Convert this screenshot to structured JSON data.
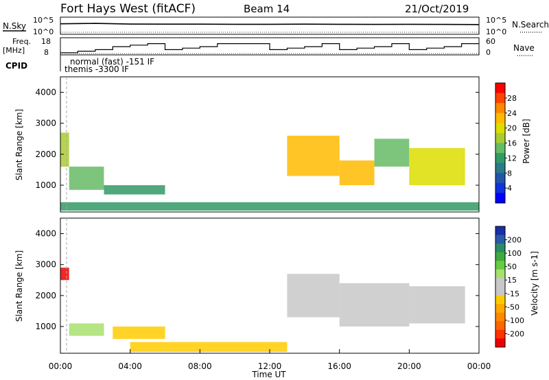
{
  "header": {
    "radar": "Fort Hays West (fitACF)",
    "beam": "Beam 14",
    "date": "21/Oct/2019"
  },
  "noise_panel": {
    "left_label": "N.Sky",
    "right_label": "N.Search",
    "left_ticks": [
      "10^5",
      "10^0"
    ],
    "right_ticks": [
      "10^5",
      "10^0"
    ]
  },
  "freq_panel": {
    "left_label_line1": "Freq.",
    "left_label_line2": "[MHz]",
    "right_label": "Nave",
    "left_ticks": [
      "18",
      "8"
    ],
    "right_ticks": [
      "60",
      "0"
    ]
  },
  "cpid": {
    "label": "CPID",
    "line1": "normal (fast) -151 IF",
    "line2": "themis -3300 IF"
  },
  "time_axis": {
    "label": "Time UT",
    "ticks": [
      "00:00",
      "04:00",
      "08:00",
      "12:00",
      "16:00",
      "20:00",
      "00:00"
    ]
  },
  "power_panel": {
    "ylabel": "Slant Range [km]",
    "yticks": [
      "4000",
      "3000",
      "2000",
      "1000"
    ],
    "colorbar_label": "Power [dB]",
    "colorbar_ticks": [
      "28",
      "24",
      "20",
      "16",
      "12",
      "8",
      "4"
    ],
    "colorbar_colors": [
      "#ff0000",
      "#ff4400",
      "#ff8800",
      "#ffbb00",
      "#dddd00",
      "#aacc33",
      "#66bb66",
      "#339966",
      "#2a7a88",
      "#2255aa",
      "#1133dd",
      "#0000ff"
    ]
  },
  "velocity_panel": {
    "ylabel": "Slant Range [km]",
    "yticks": [
      "4000",
      "3000",
      "2000",
      "1000"
    ],
    "colorbar_label": "Velocity [m s-1]",
    "colorbar_ticks": [
      "200",
      "100",
      "50",
      "15",
      "-15",
      "-50",
      "-100",
      "-200"
    ],
    "colorbar_colors": [
      "#1a2ea8",
      "#2a5aa8",
      "#2f8a66",
      "#3faa3f",
      "#66cc44",
      "#a8e070",
      "#c8c8c8",
      "#c8c8c8",
      "#ffcc00",
      "#ffaa00",
      "#ff8800",
      "#ff6600",
      "#ff3300",
      "#ee0000"
    ]
  },
  "chart_data": [
    {
      "type": "line",
      "title": "Fort Hays West (fitACF)",
      "ylabel": "N.Sky",
      "x": [
        "00:00",
        "02:00",
        "04:00",
        "06:00",
        "08:00",
        "10:00",
        "12:00",
        "14:00",
        "16:00",
        "18:00",
        "20:00",
        "22:00",
        "24:00"
      ],
      "series": [
        {
          "values": [
            1500,
            2000,
            1200,
            1100,
            1100,
            1000,
            1000,
            1100,
            1000,
            900,
            1000,
            900,
            800
          ]
        }
      ]
    },
    {
      "type": "line",
      "ylabel": "Freq. [MHz]",
      "ylim": [
        8,
        18
      ],
      "x": [
        "00:00",
        "01:00",
        "02:00",
        "03:00",
        "04:00",
        "05:00",
        "06:00",
        "07:00",
        "08:00",
        "09:00",
        "10:00",
        "11:00",
        "12:00",
        "13:00",
        "14:00",
        "15:00",
        "16:00",
        "17:00",
        "18:00",
        "19:00",
        "20:00",
        "21:00",
        "22:00",
        "23:00"
      ],
      "series": [
        {
          "values": [
            9,
            10,
            11,
            13,
            14,
            15,
            11,
            12,
            13,
            15,
            15,
            15,
            11,
            12,
            13,
            15,
            11,
            12,
            13,
            15,
            11,
            12,
            13,
            15
          ]
        }
      ]
    },
    {
      "type": "heatmap",
      "title": "Beam 14",
      "ylabel": "Slant Range [km]",
      "xlabel": "Time UT",
      "colorbar": "Power [dB]",
      "clim": [
        0,
        30
      ],
      "xlim": [
        "00:00",
        "24:00"
      ],
      "ylim": [
        180,
        4500
      ],
      "regions": [
        {
          "t0": 0.0,
          "t1": 0.5,
          "r0": 1600,
          "r1": 2700,
          "value": 16
        },
        {
          "t0": 0.5,
          "t1": 2.5,
          "r0": 850,
          "r1": 1600,
          "value": 14
        },
        {
          "t0": 2.5,
          "t1": 6.0,
          "r0": 700,
          "r1": 1000,
          "value": 12
        },
        {
          "t0": 13.0,
          "t1": 16.0,
          "r0": 1300,
          "r1": 2600,
          "value": 22
        },
        {
          "t0": 16.0,
          "t1": 18.0,
          "r0": 1000,
          "r1": 1800,
          "value": 20
        },
        {
          "t0": 18.0,
          "t1": 20.0,
          "r0": 1600,
          "r1": 2500,
          "value": 14
        },
        {
          "t0": 20.0,
          "t1": 23.2,
          "r0": 1000,
          "r1": 2200,
          "value": 18
        },
        {
          "t0": 0.0,
          "t1": 24.0,
          "r0": 180,
          "r1": 450,
          "value": 10
        }
      ]
    },
    {
      "type": "heatmap",
      "ylabel": "Slant Range [km]",
      "xlabel": "Time UT",
      "colorbar": "Velocity [m s-1]",
      "clim": [
        -200,
        200
      ],
      "xlim": [
        "00:00",
        "24:00"
      ],
      "ylim": [
        180,
        4500
      ],
      "regions": [
        {
          "t0": 0.0,
          "t1": 0.5,
          "r0": 2500,
          "r1": 2900,
          "value": -200
        },
        {
          "t0": 0.5,
          "t1": 2.5,
          "r0": 700,
          "r1": 1100,
          "value": 50
        },
        {
          "t0": 3.0,
          "t1": 6.0,
          "r0": 600,
          "r1": 1000,
          "value": -50
        },
        {
          "t0": 4.0,
          "t1": 13.0,
          "r0": 180,
          "r1": 500,
          "value": -50
        },
        {
          "t0": 13.0,
          "t1": 16.0,
          "r0": 1300,
          "r1": 2700,
          "value": 0
        },
        {
          "t0": 16.0,
          "t1": 20.0,
          "r0": 1000,
          "r1": 2400,
          "value": 0
        },
        {
          "t0": 20.0,
          "t1": 23.2,
          "r0": 1100,
          "r1": 2300,
          "value": 0
        }
      ]
    }
  ]
}
